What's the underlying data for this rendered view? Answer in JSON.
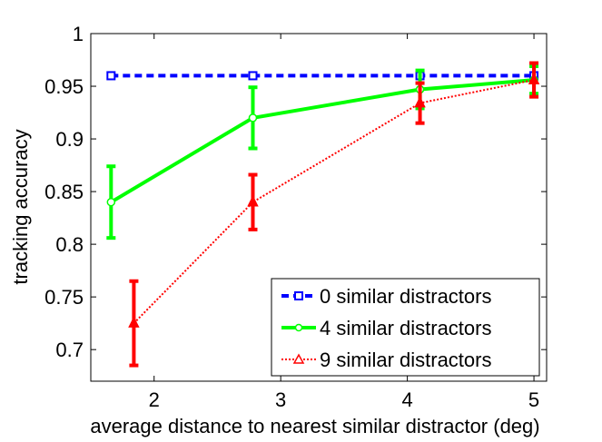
{
  "chart_data": {
    "type": "line",
    "title": "",
    "xlabel": "average distance to nearest similar distractor (deg)",
    "ylabel": "tracking accuracy",
    "xlim": [
      1.5,
      5.1
    ],
    "ylim": [
      0.67,
      1.0
    ],
    "xticks": [
      "2",
      "3",
      "4",
      "5"
    ],
    "yticks": [
      "1",
      "0.95",
      "0.9",
      "0.85",
      "0.8",
      "0.75",
      "0.7"
    ],
    "grid": false,
    "legend_position": "bottom-right",
    "series": [
      {
        "name": "0 similar distractors",
        "color": "#0000ff",
        "line_style": "dashed",
        "marker": "square",
        "x": [
          1.66,
          2.78,
          4.1,
          5.0
        ],
        "y": [
          0.96,
          0.96,
          0.96,
          0.96
        ],
        "err": [
          0,
          0,
          0,
          0
        ]
      },
      {
        "name": "4 similar distractors",
        "color": "#00ff00",
        "line_style": "solid",
        "marker": "circle",
        "x": [
          1.66,
          2.78,
          4.1,
          5.0
        ],
        "y": [
          0.84,
          0.92,
          0.947,
          0.956
        ],
        "err": [
          0.034,
          0.029,
          0.018,
          0.013
        ]
      },
      {
        "name": "9 similar distractors",
        "color": "#ff0000",
        "line_style": "dotted",
        "marker": "triangle",
        "x": [
          1.84,
          2.78,
          4.1,
          5.0
        ],
        "y": [
          0.725,
          0.84,
          0.934,
          0.956
        ],
        "err": [
          0.04,
          0.026,
          0.019,
          0.016
        ]
      }
    ]
  }
}
